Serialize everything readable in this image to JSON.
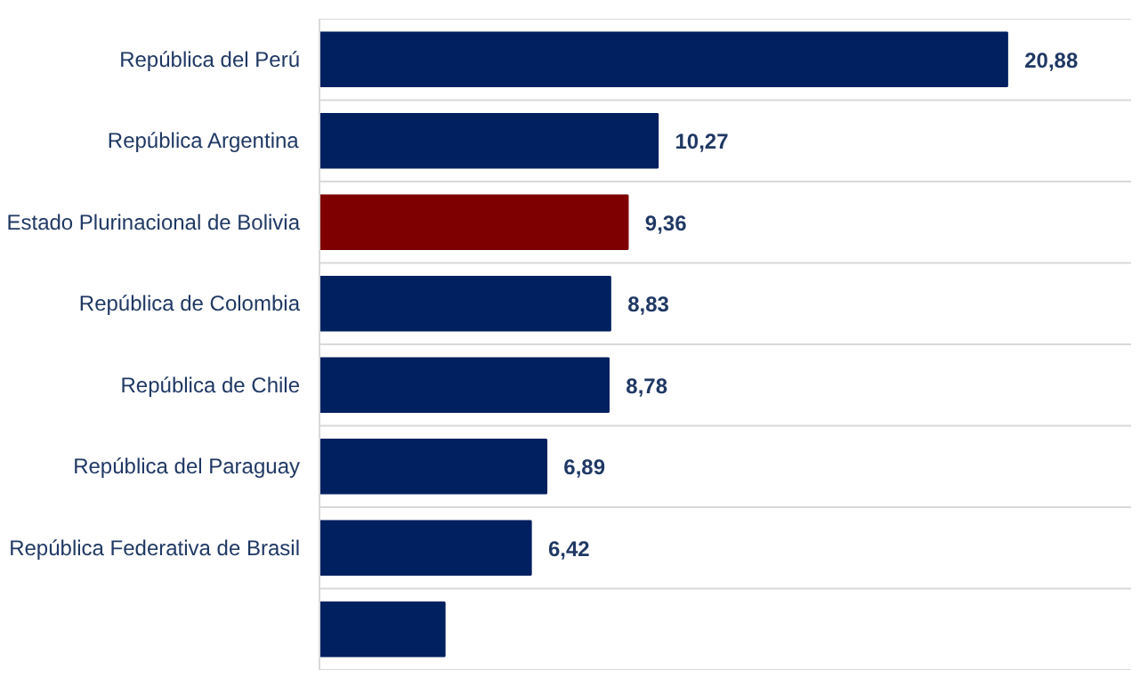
{
  "chart_data": {
    "type": "bar",
    "orientation": "horizontal",
    "categories": [
      "República del Perú",
      "República Argentina",
      "Estado Plurinacional de Bolivia",
      "República de Colombia",
      "República de Chile",
      "República del Paraguay",
      "República Federativa de Brasil",
      null
    ],
    "values": [
      20.88,
      10.27,
      9.36,
      8.83,
      8.78,
      6.89,
      6.42,
      3.8
    ],
    "value_labels": [
      "20,88",
      "10,27",
      "9,36",
      "8,83",
      "8,78",
      "6,89",
      "6,42",
      null
    ],
    "colors": [
      "#002060",
      "#002060",
      "#7f0000",
      "#002060",
      "#002060",
      "#002060",
      "#002060",
      "#002060"
    ],
    "grid": "y"
  }
}
